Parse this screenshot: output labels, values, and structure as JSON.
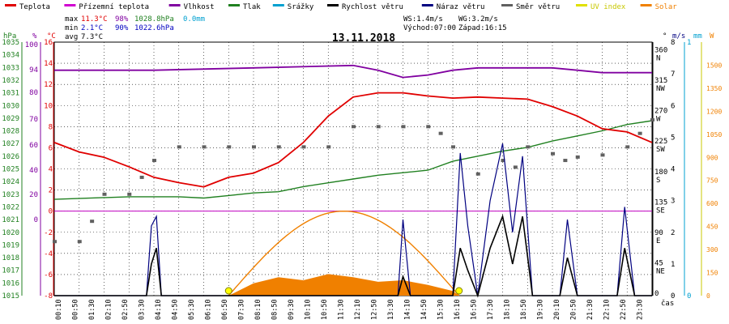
{
  "legend": [
    {
      "label": "Teplota",
      "color": "#e00000"
    },
    {
      "label": "Přízemní teplota",
      "color": "#d000d0"
    },
    {
      "label": "Vlhkost",
      "color": "#8000a0"
    },
    {
      "label": "Tlak",
      "color": "#208020"
    },
    {
      "label": "Srážky",
      "color": "#00a0d0"
    },
    {
      "label": "Rychlost větru",
      "color": "#000000"
    },
    {
      "label": "Náraz větru",
      "color": "#000080"
    },
    {
      "label": "Směr větru",
      "color": "#606060"
    },
    {
      "label": "UV index",
      "color": "#e0e000"
    },
    {
      "label": "Solar",
      "color": "#f08000"
    }
  ],
  "stats": {
    "max_label": "max",
    "max_temp": "11.3°C",
    "max_hum": "98%",
    "max_press": "1028.8hPa",
    "max_rain": "0.0mm",
    "min_label": "min",
    "min_temp": "2.1°C",
    "min_hum": "90%",
    "min_press": "1022.6hPa",
    "avg_label": "avg",
    "avg_temp": "7.3°C",
    "ws": "WS:1.4m/s",
    "wg": "WG:3.2m/s",
    "sunrise": "Východ:07:00",
    "sunset": "Západ:16:15"
  },
  "axis_units": {
    "hpa": "hPa",
    "pct": "%",
    "degc": "°C",
    "deg": "°",
    "ms": "m/s",
    "mm": "mm",
    "w": "W",
    "time": "čas"
  },
  "axes": {
    "hpa": [
      "1035",
      "1034",
      "1033",
      "1032",
      "1031",
      "1030",
      "1029",
      "1028",
      "1027",
      "1026",
      "1025",
      "1024",
      "1023",
      "1022",
      "1021",
      "1020",
      "1019",
      "1018",
      "1017",
      "1016",
      "1015"
    ],
    "pct": [
      "100",
      "",
      "94",
      "",
      "80",
      "",
      "70",
      "",
      "60",
      "",
      "40",
      "",
      "20",
      "",
      "0"
    ],
    "pct_ticks": [
      "100",
      "94",
      "80",
      "70",
      "60",
      "40",
      "20",
      "0"
    ],
    "degc": [
      "16",
      "14",
      "12",
      "10",
      "8",
      "6",
      "4",
      "2",
      "0",
      "-2",
      "-4",
      "-6",
      "-8"
    ],
    "dir": [
      {
        "v": "360",
        "d": "N"
      },
      {
        "v": "315",
        "d": "NW"
      },
      {
        "v": "270",
        "d": "W"
      },
      {
        "v": "225",
        "d": "SW"
      },
      {
        "v": "180",
        "d": "S"
      },
      {
        "v": "135",
        "d": "SE"
      },
      {
        "v": "90",
        "d": "E"
      },
      {
        "v": "45",
        "d": "NE"
      },
      {
        "v": "0",
        "d": ""
      }
    ],
    "ms": [
      "8",
      "7",
      "6",
      "5",
      "4",
      "3",
      "2",
      "1",
      "0"
    ],
    "mm": [
      "1",
      "",
      "",
      "",
      "",
      "",
      "",
      "",
      "0"
    ],
    "w": [
      "1500",
      "1350",
      "1200",
      "1050",
      "900",
      "750",
      "600",
      "450",
      "300",
      "150",
      "0"
    ]
  },
  "chart_data": {
    "type": "line",
    "title": "13.11.2018",
    "x_labels": [
      "00:10",
      "00:50",
      "01:30",
      "02:10",
      "02:50",
      "03:30",
      "04:10",
      "04:50",
      "05:30",
      "06:10",
      "06:50",
      "07:30",
      "08:10",
      "08:50",
      "09:30",
      "10:10",
      "10:50",
      "11:30",
      "12:10",
      "12:50",
      "13:30",
      "14:10",
      "14:50",
      "15:30",
      "16:10",
      "16:50",
      "17:30",
      "18:10",
      "18:50",
      "19:30",
      "20:10",
      "20:50",
      "21:30",
      "22:10",
      "22:50",
      "23:30"
    ],
    "x_range_hours": [
      0,
      24
    ],
    "temperature_c": [
      [
        0,
        6.5
      ],
      [
        1,
        5.6
      ],
      [
        2,
        5.1
      ],
      [
        3,
        4.2
      ],
      [
        4,
        3.2
      ],
      [
        5,
        2.7
      ],
      [
        6,
        2.3
      ],
      [
        7,
        3.2
      ],
      [
        8,
        3.6
      ],
      [
        9,
        4.6
      ],
      [
        10,
        6.5
      ],
      [
        11,
        9.0
      ],
      [
        12,
        10.8
      ],
      [
        13,
        11.2
      ],
      [
        14,
        11.2
      ],
      [
        15,
        10.9
      ],
      [
        16,
        10.7
      ],
      [
        17,
        10.8
      ],
      [
        18,
        10.7
      ],
      [
        19,
        10.6
      ],
      [
        20,
        9.9
      ],
      [
        21,
        9.0
      ],
      [
        22,
        7.8
      ],
      [
        23,
        7.5
      ],
      [
        24,
        6.5
      ]
    ],
    "humidity_pct": [
      [
        0,
        93
      ],
      [
        4,
        93
      ],
      [
        8,
        94
      ],
      [
        12,
        95
      ],
      [
        13,
        93
      ],
      [
        14,
        90
      ],
      [
        15,
        91
      ],
      [
        16,
        93
      ],
      [
        17,
        94
      ],
      [
        18,
        94
      ],
      [
        19,
        94
      ],
      [
        20,
        94
      ],
      [
        21,
        93
      ],
      [
        22,
        92
      ],
      [
        23,
        92
      ],
      [
        24,
        92
      ]
    ],
    "pressure_hpa": [
      [
        0,
        1022.6
      ],
      [
        3,
        1022.8
      ],
      [
        5,
        1022.8
      ],
      [
        6,
        1022.7
      ],
      [
        7,
        1022.9
      ],
      [
        8,
        1023.1
      ],
      [
        9,
        1023.2
      ],
      [
        10,
        1023.6
      ],
      [
        11,
        1023.9
      ],
      [
        12,
        1024.2
      ],
      [
        13,
        1024.5
      ],
      [
        14,
        1024.7
      ],
      [
        15,
        1024.9
      ],
      [
        16,
        1025.6
      ],
      [
        17,
        1026.0
      ],
      [
        18,
        1026.4
      ],
      [
        19,
        1026.7
      ],
      [
        20,
        1027.2
      ],
      [
        21,
        1027.6
      ],
      [
        22,
        1028.0
      ],
      [
        23,
        1028.5
      ],
      [
        24,
        1028.8
      ]
    ],
    "wind_dir_deg": [
      [
        0,
        80
      ],
      [
        1,
        80
      ],
      [
        1.5,
        110
      ],
      [
        2,
        150
      ],
      [
        3,
        150
      ],
      [
        3.5,
        175
      ],
      [
        4,
        200
      ],
      [
        5,
        220
      ],
      [
        6,
        220
      ],
      [
        7,
        220
      ],
      [
        8,
        220
      ],
      [
        9,
        220
      ],
      [
        10,
        220
      ],
      [
        11,
        220
      ],
      [
        12,
        250
      ],
      [
        13,
        250
      ],
      [
        14,
        250
      ],
      [
        15,
        250
      ],
      [
        15.5,
        240
      ],
      [
        16,
        220
      ],
      [
        17,
        180
      ],
      [
        18,
        200
      ],
      [
        18.5,
        190
      ],
      [
        19,
        220
      ],
      [
        20,
        210
      ],
      [
        20.5,
        200
      ],
      [
        21,
        205
      ],
      [
        22,
        208
      ],
      [
        23,
        220
      ],
      [
        23.5,
        240
      ],
      [
        24,
        260
      ]
    ],
    "wind_speed_ms": [
      [
        0,
        0
      ],
      [
        3.7,
        0
      ],
      [
        3.9,
        1
      ],
      [
        4.1,
        1.5
      ],
      [
        4.3,
        0
      ],
      [
        13.8,
        0
      ],
      [
        14.0,
        0.6
      ],
      [
        14.3,
        0
      ],
      [
        16.0,
        0
      ],
      [
        16.3,
        1.5
      ],
      [
        16.6,
        0.8
      ],
      [
        17.0,
        0
      ],
      [
        17.5,
        1.5
      ],
      [
        18.0,
        2.5
      ],
      [
        18.4,
        1
      ],
      [
        18.8,
        2.5
      ],
      [
        19.2,
        0
      ],
      [
        20.3,
        0
      ],
      [
        20.6,
        1.2
      ],
      [
        21.0,
        0
      ],
      [
        22.6,
        0
      ],
      [
        22.9,
        1.5
      ],
      [
        23.3,
        0
      ],
      [
        24,
        0
      ]
    ],
    "wind_gust_ms": [
      [
        0,
        0
      ],
      [
        3.7,
        0
      ],
      [
        3.9,
        2.2
      ],
      [
        4.1,
        2.5
      ],
      [
        4.3,
        0
      ],
      [
        13.8,
        0
      ],
      [
        14.0,
        2.4
      ],
      [
        14.3,
        0
      ],
      [
        16.0,
        0
      ],
      [
        16.3,
        4.5
      ],
      [
        16.6,
        2.2
      ],
      [
        17.0,
        0
      ],
      [
        17.5,
        3.0
      ],
      [
        18.0,
        4.8
      ],
      [
        18.4,
        2.0
      ],
      [
        18.8,
        4.4
      ],
      [
        19.2,
        0
      ],
      [
        20.3,
        0
      ],
      [
        20.6,
        2.4
      ],
      [
        21.0,
        0
      ],
      [
        22.6,
        0
      ],
      [
        22.9,
        2.8
      ],
      [
        23.3,
        0
      ],
      [
        24,
        0
      ]
    ],
    "solar_wm2": [
      [
        7.0,
        0
      ],
      [
        8,
        80
      ],
      [
        9,
        120
      ],
      [
        10,
        100
      ],
      [
        11,
        140
      ],
      [
        12,
        120
      ],
      [
        13,
        90
      ],
      [
        14,
        100
      ],
      [
        15,
        70
      ],
      [
        16,
        30
      ],
      [
        16.25,
        0
      ]
    ],
    "solar_max_curve_peak_wm2": 550,
    "ground_temp_reference_c": 0
  }
}
